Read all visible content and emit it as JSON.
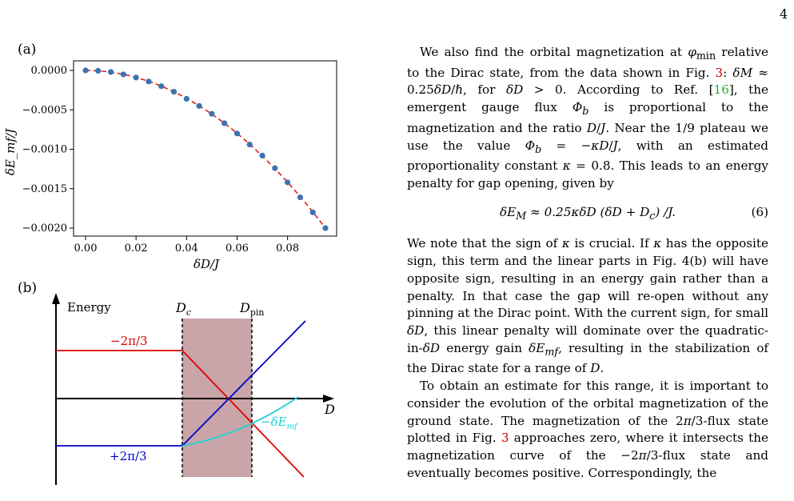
{
  "page_number": "4",
  "figure": {
    "panel_a_label": "(a)",
    "panel_b_label": "(b)",
    "chart_data": {
      "type": "scatter",
      "x": [
        0.0,
        0.005,
        0.01,
        0.015,
        0.02,
        0.025,
        0.03,
        0.035,
        0.04,
        0.045,
        0.05,
        0.055,
        0.06,
        0.065,
        0.07,
        0.075,
        0.08,
        0.085,
        0.09,
        0.095
      ],
      "y": [
        0.0,
        -5e-06,
        -2e-05,
        -5e-05,
        -9e-05,
        -0.00014,
        -0.0002,
        -0.00027,
        -0.00036,
        -0.00045,
        -0.00055,
        -0.00067,
        -0.0008,
        -0.00094,
        -0.00108,
        -0.00124,
        -0.00142,
        -0.00161,
        -0.0018,
        -0.002
      ],
      "fit_curve": "dashed quadratic fit through points",
      "xlabel": "δD/J",
      "ylabel": "δE_mf/J",
      "xlim": [
        0.0,
        0.095
      ],
      "ylim": [
        -0.002,
        0.0
      ],
      "xticks": [
        "0.00",
        "0.02",
        "0.04",
        "0.06",
        "0.08"
      ],
      "yticks": [
        "0.0000",
        "−0.0005",
        "−0.0010",
        "−0.0015",
        "−0.0020"
      ],
      "marker_color": "#3b73b0",
      "fit_color": "#e41a1c"
    },
    "schematic": {
      "y_axis_label": "Energy",
      "x_axis_label": "D",
      "dc_label": "D",
      "dc_sub": "c",
      "dpin_label": "D",
      "dpin_sub": "pin",
      "minus_flux_label": "−2π/3",
      "plus_flux_label": "+2π/3",
      "emf_label": "−δE",
      "emf_sub": "mf",
      "colors": {
        "minus_flux": "#e00000",
        "plus_flux": "#0000cc",
        "emf": "#19d3d3",
        "shade": "#c9a4a8"
      }
    }
  },
  "text": {
    "para1": "We also find the orbital magnetization at φ_min relative to the Dirac state, from the data shown in Fig. 3: δM ≈ 0.25δD/ℏ, for δD > 0. According to Ref. [16], the emergent gauge flux Φ_b is proportional to the magnetization and the ratio D/J. Near the 1/9 plateau we use the value Φ_b = −κD/J, with an estimated proportionality constant κ = 0.8. This leads to an energy penalty for gap opening, given by",
    "equation": "δE_M ≈ 0.25κδD (δD + D_c) /J.",
    "equation_number": "(6)",
    "para2": "We note that the sign of κ is crucial. If κ has the opposite sign, this term and the linear parts in Fig. 4(b) will have opposite sign, resulting in an energy gain rather than a penalty. In that case the gap will re-open without any pinning at the Dirac point. With the current sign, for small δD, this linear penalty will dominate over the quadratic-in-δD energy gain δE_mf, resulting in the stabilization of the Dirac state for a range of D.",
    "para3": "To obtain an estimate for this range, it is important to consider the evolution of the orbital magnetization of the ground state. The magnetization of the 2π/3-flux state plotted in Fig. 3 approaches zero, where it intersects the magnetization curve of the −2π/3-flux state and eventually becomes positive. Correspondingly, the"
  }
}
